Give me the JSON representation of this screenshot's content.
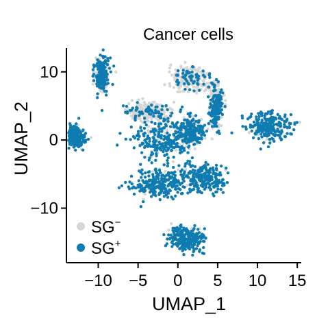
{
  "chart_data": {
    "type": "scatter",
    "title": "Cancer cells",
    "xlabel": "UMAP_1",
    "ylabel": "UMAP_2",
    "xlim": [
      -14,
      15.5
    ],
    "ylim": [
      -18,
      13.5
    ],
    "xticks": [
      {
        "value": -10,
        "label": "−10"
      },
      {
        "value": -5,
        "label": "−5"
      },
      {
        "value": 0,
        "label": "0"
      },
      {
        "value": 5,
        "label": "5"
      },
      {
        "value": 10,
        "label": "10"
      },
      {
        "value": 15,
        "label": "15"
      }
    ],
    "yticks": [
      {
        "value": 10,
        "label": "10"
      },
      {
        "value": 0,
        "label": "0"
      },
      {
        "value": -10,
        "label": "−10"
      }
    ],
    "legend_position": "bottom-left",
    "grid": false,
    "series": [
      {
        "name": "SG−",
        "label_base": "SG",
        "label_sup": "−",
        "color": "#d6d6d6"
      },
      {
        "name": "SG+",
        "label_base": "SG",
        "label_sup": "+",
        "color": "#0e7cb0"
      }
    ],
    "clusters": [
      {
        "cx": -9.5,
        "cy": 9.5,
        "spread_x": 0.8,
        "spread_y": 2.2,
        "sg_plus_fraction": 0.7
      },
      {
        "cx": -13.0,
        "cy": 0.5,
        "spread_x": 1.2,
        "spread_y": 1.5,
        "sg_plus_fraction": 0.85
      },
      {
        "cx": 1.5,
        "cy": 9.0,
        "spread_x": 2.2,
        "spread_y": 1.5,
        "sg_plus_fraction": 0.2
      },
      {
        "cx": 4.8,
        "cy": 5.0,
        "spread_x": 0.8,
        "spread_y": 3.0,
        "sg_plus_fraction": 0.5
      },
      {
        "cx": -3.5,
        "cy": 4.2,
        "spread_x": 2.6,
        "spread_y": 1.3,
        "sg_plus_fraction": 0.3
      },
      {
        "cx": -2.0,
        "cy": 0.0,
        "spread_x": 3.0,
        "spread_y": 2.2,
        "sg_plus_fraction": 0.75
      },
      {
        "cx": 1.5,
        "cy": 1.0,
        "spread_x": 1.5,
        "spread_y": 2.0,
        "sg_plus_fraction": 0.7
      },
      {
        "cx": -2.5,
        "cy": -6.5,
        "spread_x": 3.2,
        "spread_y": 2.0,
        "sg_plus_fraction": 0.85
      },
      {
        "cx": 3.0,
        "cy": -5.5,
        "spread_x": 2.5,
        "spread_y": 1.8,
        "sg_plus_fraction": 0.9
      },
      {
        "cx": 11.5,
        "cy": 2.0,
        "spread_x": 2.6,
        "spread_y": 1.8,
        "sg_plus_fraction": 0.9
      },
      {
        "cx": 1.0,
        "cy": -14.5,
        "spread_x": 2.0,
        "spread_y": 1.6,
        "sg_plus_fraction": 0.95
      }
    ]
  }
}
